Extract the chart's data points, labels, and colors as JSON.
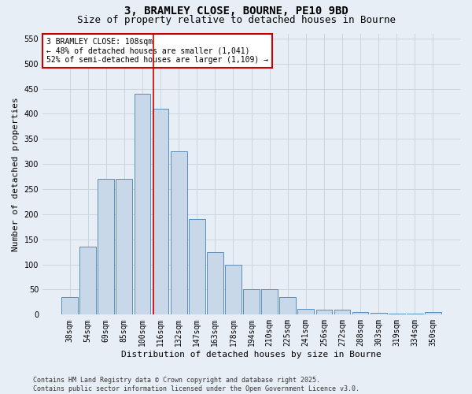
{
  "title_line1": "3, BRAMLEY CLOSE, BOURNE, PE10 9BD",
  "title_line2": "Size of property relative to detached houses in Bourne",
  "xlabel": "Distribution of detached houses by size in Bourne",
  "ylabel": "Number of detached properties",
  "categories": [
    "38sqm",
    "54sqm",
    "69sqm",
    "85sqm",
    "100sqm",
    "116sqm",
    "132sqm",
    "147sqm",
    "163sqm",
    "178sqm",
    "194sqm",
    "210sqm",
    "225sqm",
    "241sqm",
    "256sqm",
    "272sqm",
    "288sqm",
    "303sqm",
    "319sqm",
    "334sqm",
    "350sqm"
  ],
  "values": [
    35,
    135,
    270,
    270,
    440,
    410,
    325,
    190,
    125,
    100,
    50,
    50,
    35,
    12,
    10,
    10,
    5,
    4,
    2,
    2,
    5
  ],
  "bar_color": "#c8d8e8",
  "bar_edge_color": "#5b8db8",
  "vline_x": 4.6,
  "vline_color": "#cc0000",
  "annotation_text": "3 BRAMLEY CLOSE: 108sqm\n← 48% of detached houses are smaller (1,041)\n52% of semi-detached houses are larger (1,109) →",
  "annotation_box_color": "#ffffff",
  "annotation_box_edge_color": "#cc0000",
  "grid_color": "#ccd4e0",
  "background_color": "#e8eef6",
  "ylim": [
    0,
    560
  ],
  "yticks": [
    0,
    50,
    100,
    150,
    200,
    250,
    300,
    350,
    400,
    450,
    500,
    550
  ],
  "footer": "Contains HM Land Registry data © Crown copyright and database right 2025.\nContains public sector information licensed under the Open Government Licence v3.0.",
  "title_fontsize": 10,
  "subtitle_fontsize": 9,
  "axis_label_fontsize": 8,
  "tick_fontsize": 7,
  "annotation_fontsize": 7,
  "footer_fontsize": 6
}
